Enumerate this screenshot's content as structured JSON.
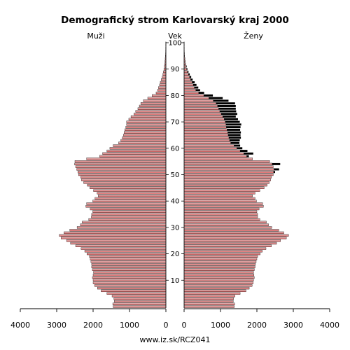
{
  "chart_data": {
    "type": "bar",
    "orientation": "horizontal",
    "title": "Demografický strom Karlovarský kraj 2000",
    "left_label": "Muži",
    "center_label": "Vek",
    "right_label": "Ženy",
    "footer": "www.iz.sk/RCZ041",
    "xlim": [
      0,
      4000
    ],
    "x_ticks": [
      0,
      1000,
      2000,
      3000,
      4000
    ],
    "x_tick_labels": [
      "0",
      "1000",
      "2000",
      "3000",
      "4000"
    ],
    "age_ticks": [
      10,
      20,
      30,
      40,
      50,
      60,
      70,
      80,
      90,
      100
    ],
    "age_tick_labels": [
      "10",
      "20",
      "30",
      "40",
      "50",
      "60",
      "70",
      "80",
      "90",
      "100"
    ],
    "ages": [
      0,
      1,
      2,
      3,
      4,
      5,
      6,
      7,
      8,
      9,
      10,
      11,
      12,
      13,
      14,
      15,
      16,
      17,
      18,
      19,
      20,
      21,
      22,
      23,
      24,
      25,
      26,
      27,
      28,
      29,
      30,
      31,
      32,
      33,
      34,
      35,
      36,
      37,
      38,
      39,
      40,
      41,
      42,
      43,
      44,
      45,
      46,
      47,
      48,
      49,
      50,
      51,
      52,
      53,
      54,
      55,
      56,
      57,
      58,
      59,
      60,
      61,
      62,
      63,
      64,
      65,
      66,
      67,
      68,
      69,
      70,
      71,
      72,
      73,
      74,
      75,
      76,
      77,
      78,
      79,
      80,
      81,
      82,
      83,
      84,
      85,
      86,
      87,
      88,
      89,
      90,
      91,
      92,
      93,
      94,
      95,
      96,
      97,
      98,
      99,
      100
    ],
    "series": [
      {
        "name": "Muži",
        "values": [
          1450,
          1460,
          1420,
          1430,
          1480,
          1620,
          1780,
          1880,
          1960,
          2000,
          2000,
          2020,
          2000,
          1990,
          2020,
          2040,
          2040,
          2060,
          2080,
          2100,
          2170,
          2230,
          2330,
          2480,
          2620,
          2730,
          2880,
          2930,
          2800,
          2640,
          2440,
          2350,
          2300,
          2120,
          2050,
          2040,
          2010,
          2080,
          2200,
          2180,
          2010,
          1950,
          1860,
          1890,
          1990,
          2090,
          2160,
          2260,
          2320,
          2340,
          2400,
          2420,
          2450,
          2480,
          2510,
          2500,
          2180,
          1820,
          1740,
          1620,
          1540,
          1450,
          1300,
          1240,
          1200,
          1170,
          1150,
          1130,
          1100,
          1080,
          1080,
          1020,
          960,
          880,
          830,
          770,
          730,
          690,
          620,
          500,
          380,
          270,
          230,
          205,
          175,
          155,
          130,
          105,
          85,
          70,
          55,
          45,
          35,
          27,
          20,
          15,
          10,
          8,
          5,
          3,
          2
        ],
        "color": "#d87878"
      },
      {
        "name": "Ženy",
        "values": [
          1380,
          1390,
          1350,
          1360,
          1400,
          1540,
          1700,
          1790,
          1870,
          1900,
          1910,
          1930,
          1920,
          1910,
          1930,
          1950,
          1960,
          1980,
          2000,
          2020,
          2090,
          2150,
          2250,
          2400,
          2540,
          2650,
          2810,
          2870,
          2740,
          2600,
          2410,
          2320,
          2260,
          2080,
          2020,
          2020,
          2000,
          2060,
          2180,
          2160,
          1990,
          1950,
          1880,
          1950,
          2080,
          2200,
          2280,
          2340,
          2380,
          2400,
          2450,
          2460,
          2470,
          2450,
          2420,
          2350,
          1880,
          1720,
          1640,
          1540,
          1450,
          1370,
          1280,
          1250,
          1230,
          1210,
          1200,
          1180,
          1160,
          1150,
          1130,
          1100,
          1060,
          1020,
          980,
          950,
          920,
          880,
          800,
          680,
          540,
          400,
          320,
          280,
          250,
          220,
          180,
          150,
          120,
          95,
          70,
          55,
          40,
          30,
          22,
          15,
          10,
          7,
          4,
          2,
          1
        ],
        "excess_values": [
          0,
          0,
          0,
          0,
          0,
          0,
          0,
          0,
          0,
          0,
          0,
          0,
          0,
          0,
          0,
          0,
          0,
          0,
          0,
          0,
          0,
          0,
          0,
          0,
          0,
          0,
          0,
          0,
          0,
          0,
          0,
          0,
          0,
          0,
          0,
          0,
          0,
          0,
          0,
          0,
          0,
          0,
          0,
          0,
          0,
          0,
          0,
          0,
          0,
          0,
          0,
          40,
          140,
          0,
          220,
          0,
          0,
          60,
          260,
          200,
          150,
          170,
          240,
          280,
          330,
          340,
          360,
          360,
          390,
          420,
          400,
          380,
          360,
          440,
          450,
          470,
          500,
          520,
          420,
          380,
          250,
          150,
          120,
          110,
          90,
          70,
          55,
          45,
          35,
          25,
          20,
          15,
          8,
          5,
          3,
          2,
          1,
          0,
          0,
          0,
          0
        ],
        "color": "#d87878",
        "excess_color": "#000000"
      }
    ]
  }
}
